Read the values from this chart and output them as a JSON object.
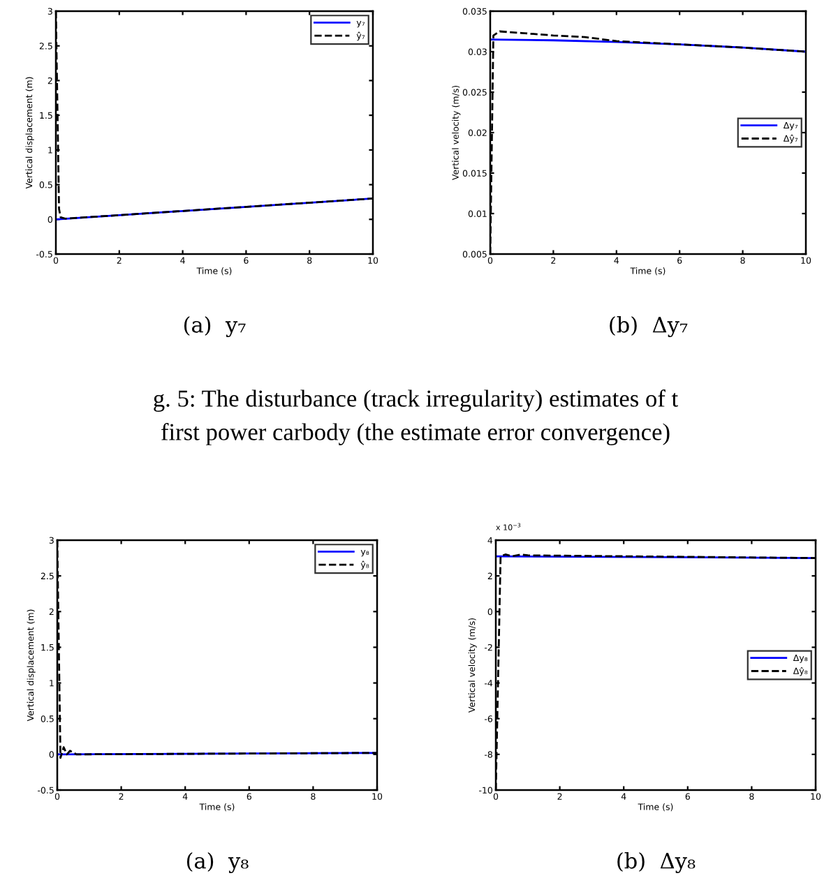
{
  "chart_data": [
    {
      "type": "line",
      "xlabel": "Time (s)",
      "ylabel": "Vertical displacement (m)",
      "xlim": [
        0,
        10
      ],
      "xticks": [
        0,
        2,
        4,
        6,
        8,
        10
      ],
      "ylim": [
        -0.5,
        3
      ],
      "yticks": [
        -0.5,
        0,
        0.5,
        1,
        1.5,
        2,
        2.5,
        3
      ],
      "grid": false,
      "legend": "top right",
      "annotations": [
        "(a)  y₇",
        "g. 5: The disturbance (track irregularity) estimates of t",
        "first power carbody (the estimate error convergence)"
      ],
      "series": [
        {
          "name": "y₇",
          "color": "#0000ff",
          "line_style": "solid",
          "x": [
            0,
            10
          ],
          "values": [
            0,
            0.3
          ]
        },
        {
          "name": "ŷ₇",
          "color": "#000000",
          "line_style": "dashed",
          "x": [
            0,
            0.1,
            0.15,
            0.3,
            10
          ],
          "values": [
            3,
            0.15,
            0.03,
            0.01,
            0.3
          ]
        }
      ]
    },
    {
      "type": "line",
      "xlabel": "Time (s)",
      "ylabel": "Vertical velocity (m/s)",
      "xlim": [
        0,
        10
      ],
      "xticks": [
        0,
        2,
        4,
        6,
        8,
        10
      ],
      "ylim": [
        0.005,
        0.035
      ],
      "yticks": [
        0.005,
        0.01,
        0.015,
        0.02,
        0.025,
        0.03,
        0.035
      ],
      "grid": false,
      "legend": "right",
      "annotations": [
        "(b)  Δy₇"
      ],
      "series": [
        {
          "name": "Δy₇",
          "color": "#0000ff",
          "line_style": "solid",
          "x": [
            0,
            2,
            4,
            6,
            8,
            10
          ],
          "values": [
            0.0315,
            0.0314,
            0.0312,
            0.0309,
            0.0305,
            0.03
          ]
        },
        {
          "name": "Δŷ₇",
          "color": "#000000",
          "line_style": "dashed",
          "x": [
            0,
            0.1,
            0.3,
            1,
            2,
            3,
            4,
            6,
            8,
            10
          ],
          "values": [
            0.005,
            0.032,
            0.0325,
            0.0323,
            0.032,
            0.0318,
            0.0313,
            0.0309,
            0.0305,
            0.03
          ]
        }
      ]
    },
    {
      "type": "line",
      "xlabel": "Time (s)",
      "ylabel": "Vertical displacement (m)",
      "xlim": [
        0,
        10
      ],
      "xticks": [
        0,
        2,
        4,
        6,
        8,
        10
      ],
      "ylim": [
        -0.5,
        3
      ],
      "yticks": [
        -0.5,
        0,
        0.5,
        1,
        1.5,
        2,
        2.5,
        3
      ],
      "grid": false,
      "legend": "top right",
      "annotations": [
        "(a)  y₈"
      ],
      "series": [
        {
          "name": "y₈",
          "color": "#0000ff",
          "line_style": "solid",
          "x": [
            0,
            10
          ],
          "values": [
            0,
            0.02
          ]
        },
        {
          "name": "ŷ₈",
          "color": "#000000",
          "line_style": "dashed",
          "x": [
            0,
            0.1,
            0.2,
            0.3,
            0.4,
            0.6,
            10
          ],
          "values": [
            3,
            -0.05,
            0.1,
            0,
            0.05,
            0,
            0.02
          ]
        }
      ]
    },
    {
      "type": "line",
      "xlabel": "Time (s)",
      "ylabel": "Vertical velocity (m/s)",
      "xlim": [
        0,
        10
      ],
      "xticks": [
        0,
        2,
        4,
        6,
        8,
        10
      ],
      "ylim": [
        -10,
        4
      ],
      "yticks": [
        -10,
        -8,
        -6,
        -4,
        -2,
        0,
        2,
        4
      ],
      "grid": false,
      "legend": "right",
      "annotations": [
        "(b)  Δy₈",
        "x 10$^{−3}$"
      ],
      "series": [
        {
          "name": "Δy₈",
          "color": "#0000ff",
          "line_style": "solid",
          "x": [
            0,
            10
          ],
          "values": [
            3.1,
            3.0
          ]
        },
        {
          "name": "Δŷ₈",
          "color": "#000000",
          "line_style": "dashed",
          "x": [
            0,
            0.15,
            0.3,
            0.5,
            0.8,
            1,
            4,
            10
          ],
          "values": [
            -10,
            3.1,
            3.2,
            3.1,
            3.2,
            3.15,
            3.1,
            3.0
          ]
        }
      ]
    }
  ]
}
